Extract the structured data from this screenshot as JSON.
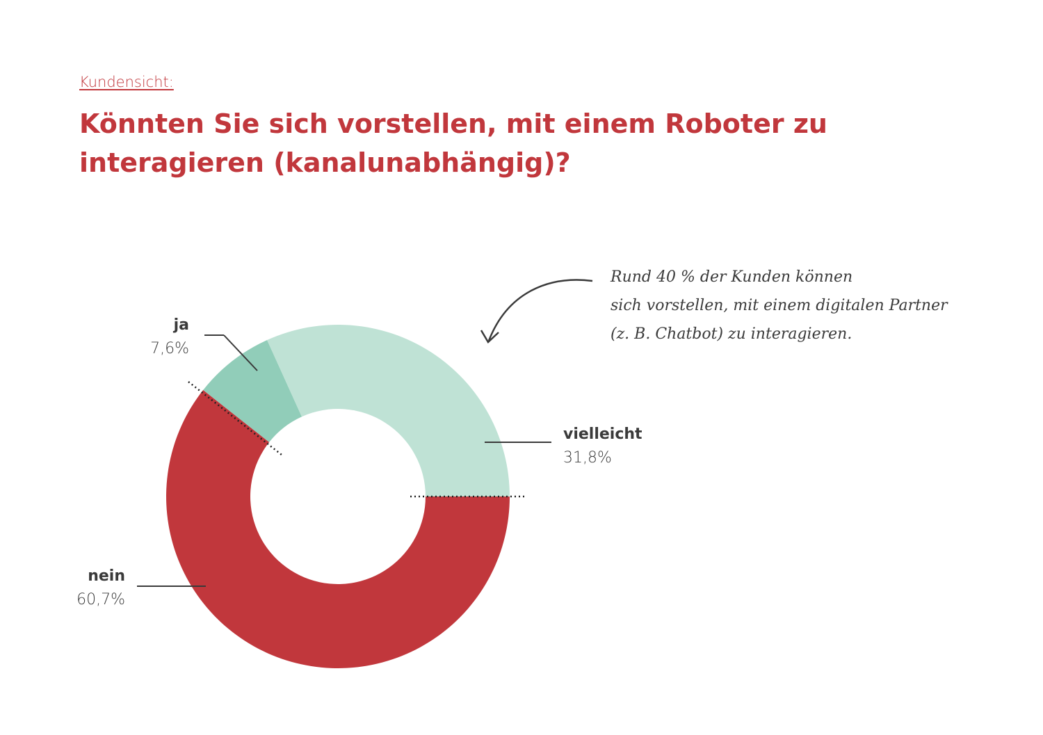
{
  "header": {
    "kicker": "Kundensicht:",
    "title_line1": "Könnten Sie sich vorstellen, mit einem Roboter zu",
    "title_line2": "interagieren (kanalunabhängig)?"
  },
  "annotation": {
    "lines": [
      "Rund 40 % der Kunden können",
      "sich vorstellen, mit einem digitalen Partner",
      "(z. B. Chatbot) zu interagieren."
    ]
  },
  "colors": {
    "title": "#c1373c",
    "nein": "#c1373c",
    "vielleicht": "#bfe2d5",
    "ja": "#91cdb9",
    "text": "#3a3a3a"
  },
  "chart_data": {
    "type": "pie",
    "subtype": "donut",
    "start_angle_deg": 0,
    "direction": "clockwise-from-right",
    "slices": [
      {
        "name": "nein",
        "value": 60.7,
        "value_label": "60,7%",
        "color": "#c1373c"
      },
      {
        "name": "ja",
        "value": 7.6,
        "value_label": "7,6%",
        "color": "#91cdb9"
      },
      {
        "name": "vielleicht",
        "value": 31.8,
        "value_label": "31,8%",
        "color": "#bfe2d5"
      }
    ]
  }
}
